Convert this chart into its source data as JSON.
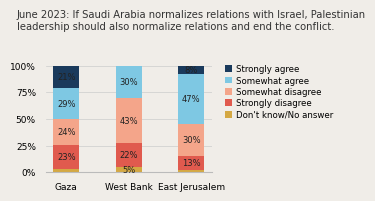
{
  "title": "June 2023: If Saudi Arabia normalizes relations with Israel, Palestinian\nleadership should also normalize relations and end the conflict.",
  "categories": [
    "Gaza",
    "West Bank",
    "East Jerusalem"
  ],
  "series_order": [
    "Don't know/No answer",
    "Strongly disagree",
    "Somewhat disagree",
    "Somewhat agree",
    "Strongly agree"
  ],
  "series": {
    "Strongly agree": [
      21,
      0,
      8
    ],
    "Somewhat agree": [
      29,
      30,
      47
    ],
    "Somewhat disagree": [
      24,
      43,
      30
    ],
    "Strongly disagree": [
      23,
      22,
      13
    ],
    "Don't know/No answer": [
      3,
      5,
      2
    ]
  },
  "colors": {
    "Strongly agree": "#1a3a5c",
    "Somewhat agree": "#7ec8e3",
    "Somewhat disagree": "#f4a58a",
    "Strongly disagree": "#e05a4e",
    "Don't know/No answer": "#d4a843"
  },
  "legend_order": [
    "Strongly agree",
    "Somewhat agree",
    "Somewhat disagree",
    "Strongly disagree",
    "Don't know/No answer"
  ],
  "ylim": [
    0,
    100
  ],
  "yticks": [
    0,
    25,
    50,
    75,
    100
  ],
  "title_fontsize": 7.2,
  "tick_fontsize": 6.5,
  "label_fontsize": 6.0,
  "legend_fontsize": 6.2,
  "bar_width": 0.42,
  "bg_color": "#f0ede8"
}
